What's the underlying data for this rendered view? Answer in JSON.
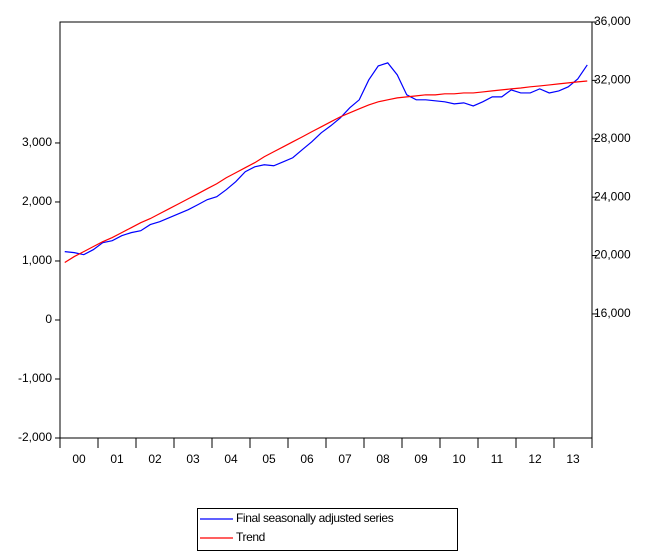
{
  "chart_data": {
    "type": "line",
    "categories": [
      null,
      "00",
      null,
      null,
      null,
      "01",
      null,
      null,
      null,
      "02",
      null,
      null,
      null,
      "03",
      null,
      null,
      null,
      "04",
      null,
      null,
      null,
      "05",
      null,
      null,
      null,
      "06",
      null,
      null,
      null,
      "07",
      null,
      null,
      null,
      "08",
      null,
      null,
      null,
      "09",
      null,
      null,
      null,
      "10",
      null,
      null,
      null,
      "11",
      null,
      null,
      null,
      "12",
      null,
      null,
      null,
      "13",
      null,
      null
    ],
    "series": [
      {
        "name": "Final seasonally adjusted series",
        "color": "#0000ff",
        "axis": "y2",
        "values": [
          20270,
          20200,
          20060,
          20400,
          20880,
          21020,
          21360,
          21570,
          21700,
          22120,
          22320,
          22590,
          22870,
          23140,
          23480,
          23830,
          24030,
          24510,
          25060,
          25740,
          26080,
          26220,
          26150,
          26420,
          26700,
          27250,
          27790,
          28410,
          28890,
          29430,
          30120,
          30670,
          32030,
          32990,
          33200,
          32380,
          31010,
          30670,
          30670,
          30600,
          30530,
          30390,
          30460,
          30250,
          30530,
          30870,
          30870,
          31350,
          31140,
          31140,
          31420,
          31140,
          31280,
          31560,
          32100,
          33060
        ]
      },
      {
        "name": "Trend",
        "color": "#ff0000",
        "axis": "y2",
        "values": [
          19520,
          19930,
          20270,
          20610,
          20950,
          21230,
          21570,
          21910,
          22250,
          22530,
          22870,
          23210,
          23550,
          23890,
          24230,
          24580,
          24920,
          25330,
          25670,
          26020,
          26360,
          26770,
          27110,
          27450,
          27790,
          28130,
          28480,
          28820,
          29160,
          29500,
          29780,
          30050,
          30320,
          30530,
          30670,
          30800,
          30870,
          30940,
          31010,
          31010,
          31080,
          31080,
          31140,
          31140,
          31210,
          31280,
          31350,
          31420,
          31480,
          31560,
          31620,
          31690,
          31760,
          31830,
          31900,
          31960
        ]
      }
    ],
    "ylim": [
      -2000,
      5050
    ],
    "yticks": [
      {
        "value": -2000,
        "label": "-2,000"
      },
      {
        "value": -1000,
        "label": "-1,000"
      },
      0,
      {
        "value": 1000,
        "label": "1,000"
      },
      {
        "value": 2000,
        "label": "2,000"
      },
      {
        "value": 3000,
        "label": "3,000"
      }
    ],
    "y2lim": [
      7500,
      36000
    ],
    "y2ticks": [
      {
        "value": 16000,
        "label": "16,000"
      },
      {
        "value": 20000,
        "label": "20,000"
      },
      {
        "value": 24000,
        "label": "24,000"
      },
      {
        "value": 28000,
        "label": "28,000"
      },
      {
        "value": 32000,
        "label": "32,000"
      },
      {
        "value": 36000,
        "label": "36,000"
      }
    ],
    "grid": false
  }
}
